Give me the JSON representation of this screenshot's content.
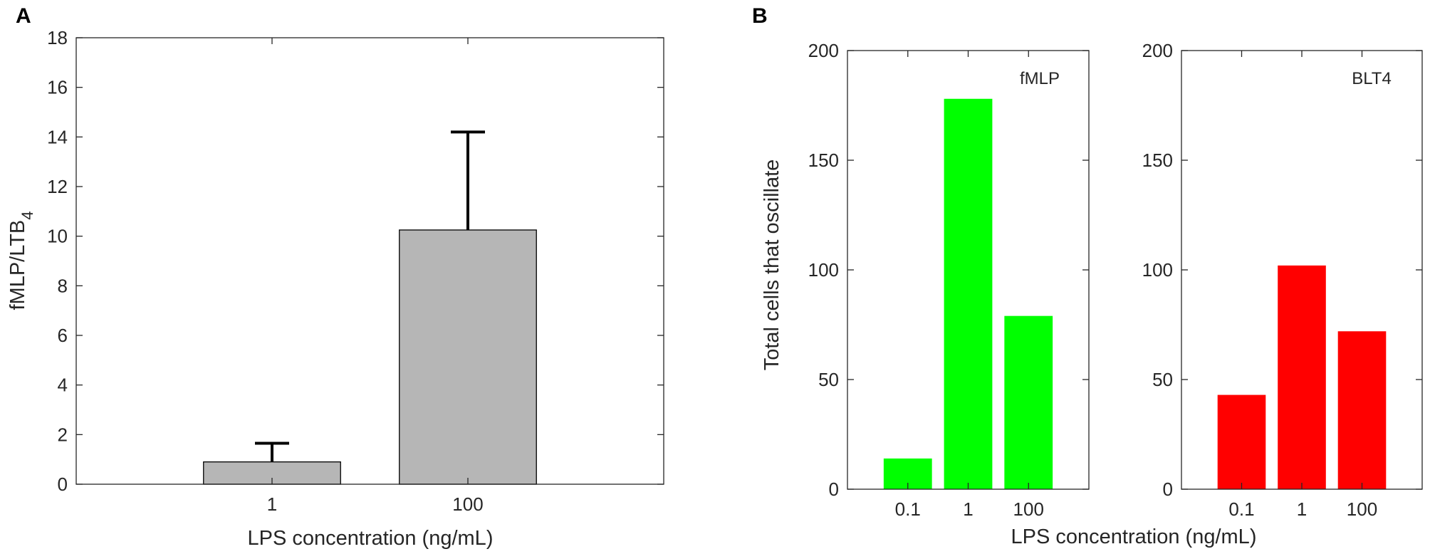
{
  "chart_data": [
    {
      "panel": "A",
      "type": "bar",
      "categories": [
        "1",
        "100"
      ],
      "values": [
        0.9,
        10.25
      ],
      "errors": [
        0.75,
        3.95
      ],
      "xlabel": "LPS concentration (ng/mL)",
      "ylabel": "fMLP/LTB",
      "ylabel_subscript": "4",
      "ylim": [
        0,
        18
      ],
      "yticks": [
        0,
        2,
        4,
        6,
        8,
        10,
        12,
        14,
        16,
        18
      ],
      "xlim": [
        0,
        3
      ],
      "x_positions": [
        1,
        2
      ],
      "bar_color": "#b6b6b6",
      "grid": false
    },
    {
      "panel": "B",
      "shared_xlabel": "LPS concentration (ng/mL)",
      "ylabel": "Total cells that oscillate",
      "subplots": [
        {
          "type": "bar",
          "series_label": "fMLP",
          "categories": [
            "0.1",
            "1",
            "100"
          ],
          "values": [
            14,
            178,
            79
          ],
          "ylim": [
            0,
            200
          ],
          "yticks": [
            0,
            50,
            100,
            150,
            200
          ],
          "xlim": [
            0,
            4
          ],
          "x_positions": [
            1,
            2,
            3
          ],
          "bar_color": "#00ff00",
          "grid": false
        },
        {
          "type": "bar",
          "series_label": "BLT4",
          "categories": [
            "0.1",
            "1",
            "100"
          ],
          "values": [
            43,
            102,
            72
          ],
          "ylim": [
            0,
            200
          ],
          "yticks": [
            0,
            50,
            100,
            150,
            200
          ],
          "xlim": [
            0,
            4
          ],
          "x_positions": [
            1,
            2,
            3
          ],
          "bar_color": "#ff0000",
          "grid": false
        }
      ]
    }
  ]
}
